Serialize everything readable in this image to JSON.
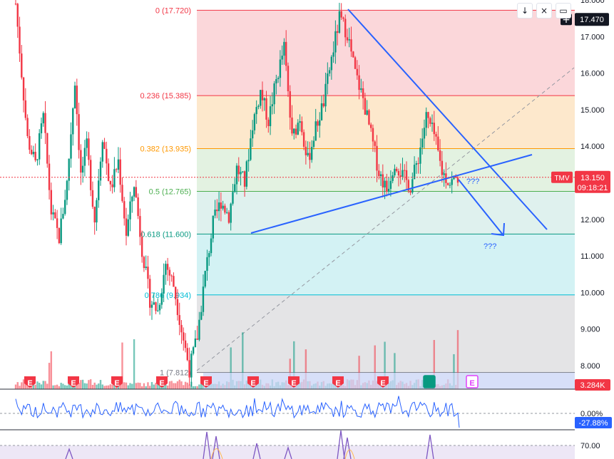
{
  "toolbar": {
    "download_icon": "arrow-down-icon",
    "close_icon": "close-icon",
    "save_icon": "save-icon",
    "add_icon": "plus-icon",
    "glyphs": {
      "download": "↓",
      "close": "×",
      "save": "▭",
      "add": "+"
    }
  },
  "chart_data": {
    "type": "candlestick",
    "symbol": "TMV",
    "y_axis": {
      "ticks": [
        "18.000",
        "17.000",
        "16.000",
        "15.000",
        "14.000",
        "13.000",
        "12.000",
        "11.000",
        "10.000",
        "9.000",
        "8.000"
      ],
      "ylim": [
        7.8,
        18.05
      ]
    },
    "price_tags": {
      "high_value": "17.470",
      "last_value": "13.150",
      "symbol": "TMV",
      "countdown": "09:18:21",
      "volume_value": "3.284K",
      "oscillator_value": "-27.88%",
      "oscillator_zero": "0.00%",
      "rsi_level": "70.00"
    },
    "fib_levels": [
      {
        "label": "0 (17.720)",
        "price": 17.72,
        "color": "#f23645",
        "fill": "#fbd7da"
      },
      {
        "label": "0.236 (15.385)",
        "price": 15.385,
        "color": "#f23645",
        "fill": "#fde8cc"
      },
      {
        "label": "0.382 (13.935)",
        "price": 13.935,
        "color": "#ff9800",
        "fill": "#e3f2e1"
      },
      {
        "label": "0.5 (12.765)",
        "price": 12.765,
        "color": "#4caf50",
        "fill": "#dff1ee"
      },
      {
        "label": "0.618 (11.600)",
        "price": 11.6,
        "color": "#089981",
        "fill": "#d3f2f4"
      },
      {
        "label": "0.786 (9.934)",
        "price": 9.934,
        "color": "#00bcd4",
        "fill": "#e4e4e6"
      },
      {
        "label": "1 (7.812)",
        "price": 7.812,
        "color": "#787b86",
        "fill": null
      }
    ],
    "annotations": [
      {
        "text": "???",
        "price": 12.9,
        "x_bar": 222
      },
      {
        "text": "???",
        "price": 11.15,
        "x_bar": 230
      }
    ],
    "events": [
      "E",
      "E",
      "E",
      "E",
      "E",
      "E",
      "E",
      "E",
      "E",
      "E",
      "E"
    ],
    "colors": {
      "up": "#089981",
      "down": "#f23645",
      "trendline": "#2962ff",
      "diagonal": "#9598a1",
      "price_line": "#f23645",
      "oscillator": "#2962ff",
      "rsi": "#7e57c2"
    },
    "grid": false,
    "legend": "none"
  }
}
